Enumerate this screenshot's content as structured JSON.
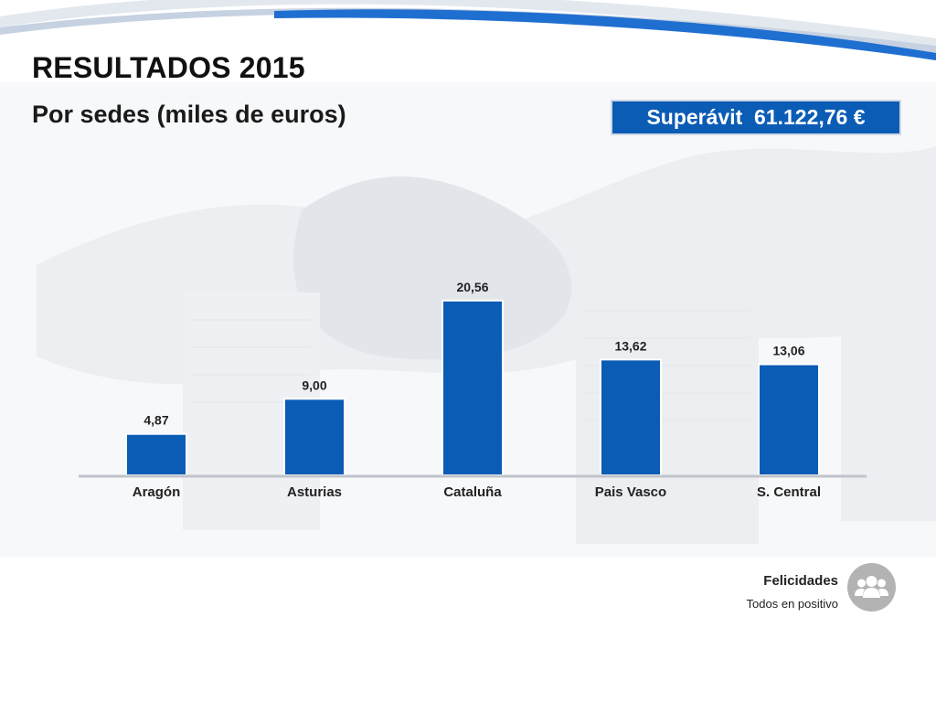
{
  "slide": {
    "title": "RESULTADOS 2015",
    "subtitle": "Por sedes (miles de euros)",
    "surplus_badge": "Superávit  61.122,76 €",
    "footer_title": "Felicidades",
    "footer_subtitle": "Todos en positivo",
    "footer_icon": "people-icon"
  },
  "colors": {
    "bar": "#0b5cb5",
    "badge": "#0b5cb5",
    "wave": "#1f6fd0"
  },
  "chart_data": {
    "type": "bar",
    "title": "",
    "xlabel": "",
    "ylabel": "",
    "categories": [
      "Aragón",
      "Asturias",
      "Cataluña",
      "Pais Vasco",
      "S. Central"
    ],
    "values": [
      4.87,
      9.0,
      20.56,
      13.62,
      13.06
    ],
    "value_labels": [
      "4,87",
      "9,00",
      "20,56",
      "13,62",
      "13,06"
    ],
    "ylim": [
      0,
      22
    ],
    "grid": false,
    "legend": "none"
  }
}
